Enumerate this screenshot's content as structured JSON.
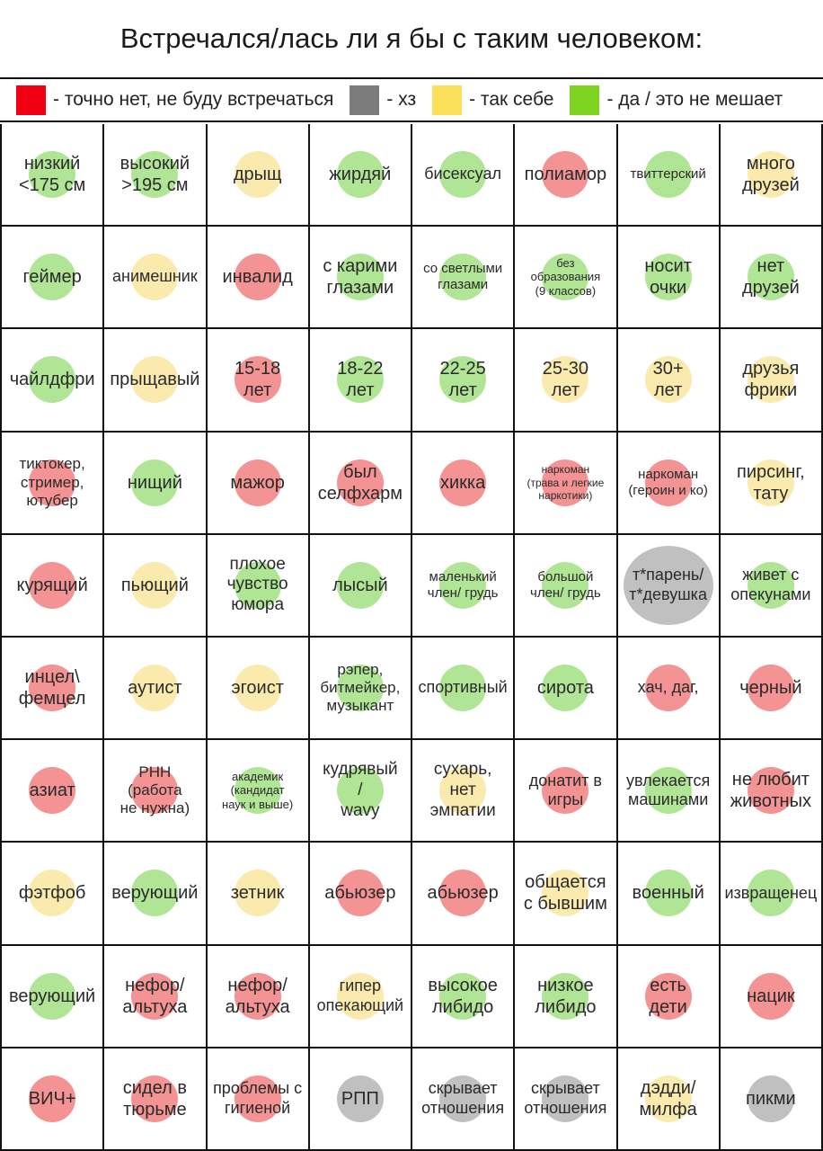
{
  "title": "Встречался/лась ли я бы с таким человеком:",
  "colors": {
    "red": "#f00012",
    "gray": "#7b7b7b",
    "yellow": "#fbe15a",
    "green": "#7ed321",
    "dot_red": "#ea3b3b",
    "dot_gray": "#8d8d8d",
    "dot_yellow": "#f7d96a",
    "dot_green": "#6fcf3e"
  },
  "legend": [
    {
      "color": "red",
      "label": "- точно нет, не буду встречаться"
    },
    {
      "color": "gray",
      "label": "- хз"
    },
    {
      "color": "yellow",
      "label": "- так себе"
    },
    {
      "color": "green",
      "label": "- да / это не мешает"
    }
  ],
  "rows": [
    [
      {
        "text": "низкий\n<175 см",
        "color": "green"
      },
      {
        "text": "высокий\n>195 см",
        "color": "green"
      },
      {
        "text": "дрыщ",
        "color": "yellow"
      },
      {
        "text": "жирдяй",
        "color": "green"
      },
      {
        "text": "бисексуал",
        "color": "green"
      },
      {
        "text": "полиамор",
        "color": "red"
      },
      {
        "text": "твиттерский",
        "color": "green"
      },
      {
        "text": "много\nдрузей",
        "color": "yellow"
      }
    ],
    [
      {
        "text": "геймер",
        "color": "green"
      },
      {
        "text": "анимешник",
        "color": "yellow"
      },
      {
        "text": "инвалид",
        "color": "red"
      },
      {
        "text": "с карими\nглазами",
        "color": "green"
      },
      {
        "text": "со светлыми\nглазами",
        "color": "green"
      },
      {
        "text": "без\nобразования\n(9 классов)",
        "color": "green"
      },
      {
        "text": "носит\nочки",
        "color": "green"
      },
      {
        "text": "нет\nдрузей",
        "color": "green"
      }
    ],
    [
      {
        "text": "чайлдфри",
        "color": "green"
      },
      {
        "text": "прыщавый",
        "color": "yellow"
      },
      {
        "text": "15-18\nлет",
        "color": "red"
      },
      {
        "text": "18-22\nлет",
        "color": "green"
      },
      {
        "text": "22-25\nлет",
        "color": "green"
      },
      {
        "text": "25-30\nлет",
        "color": "yellow"
      },
      {
        "text": "30+\nлет",
        "color": "yellow"
      },
      {
        "text": "друзья\nфрики",
        "color": "yellow"
      }
    ],
    [
      {
        "text": "тиктокер,\nстример,\nютубер",
        "color": "red"
      },
      {
        "text": "нищий",
        "color": "green"
      },
      {
        "text": "мажор",
        "color": "red"
      },
      {
        "text": "был\nселфхарм",
        "color": "red"
      },
      {
        "text": "хикка",
        "color": "red"
      },
      {
        "text": "наркоман\n(трава и легкие\nнаркотики)",
        "color": "red"
      },
      {
        "text": "наркоман\n(героин и ко)",
        "color": "red"
      },
      {
        "text": "пирсинг,\nтату",
        "color": "yellow"
      }
    ],
    [
      {
        "text": "курящий",
        "color": "red"
      },
      {
        "text": "пьющий",
        "color": "yellow"
      },
      {
        "text": "плохое\nчувство\nюмора",
        "color": "green"
      },
      {
        "text": "лысый",
        "color": "green"
      },
      {
        "text": "маленький\nчлен/ грудь",
        "color": "green"
      },
      {
        "text": "большой\nчлен/ грудь",
        "color": "green"
      },
      {
        "text": "т*парень/\nт*девушка",
        "color": "gray",
        "big": true
      },
      {
        "text": "живет с\nопекунами",
        "color": "green"
      }
    ],
    [
      {
        "text": "инцел\\\nфемцел",
        "color": "red"
      },
      {
        "text": "аутист",
        "color": "yellow"
      },
      {
        "text": "эгоист",
        "color": "yellow"
      },
      {
        "text": "рэпер,\nбитмейкер,\nмузыкант",
        "color": "green"
      },
      {
        "text": "спортивный",
        "color": "green"
      },
      {
        "text": "сирота",
        "color": "green"
      },
      {
        "text": "хач, даг,",
        "color": "red"
      },
      {
        "text": "черный",
        "color": "red"
      }
    ],
    [
      {
        "text": "азиат",
        "color": "red"
      },
      {
        "text": "РНН\n(работа\nне нужна)",
        "color": "red"
      },
      {
        "text": "академик\n(кандидат\nнаук и выше)",
        "color": "green"
      },
      {
        "text": "кудрявый\n/\nwavy",
        "color": "green"
      },
      {
        "text": "сухарь,\nнет\nэмпатии",
        "color": "yellow"
      },
      {
        "text": "донатит в\nигры",
        "color": "red"
      },
      {
        "text": "увлекается\nмашинами",
        "color": "green"
      },
      {
        "text": "не любит\nживотных",
        "color": "red"
      }
    ],
    [
      {
        "text": "фэтфоб",
        "color": "yellow"
      },
      {
        "text": "верующий",
        "color": "green"
      },
      {
        "text": "зетник",
        "color": "yellow"
      },
      {
        "text": "абьюзер",
        "color": "red"
      },
      {
        "text": "абьюзер",
        "color": "red"
      },
      {
        "text": "общается\nс бывшим",
        "color": "yellow"
      },
      {
        "text": "военный",
        "color": "green"
      },
      {
        "text": "извращенец",
        "color": "green"
      }
    ],
    [
      {
        "text": "верующий",
        "color": "green"
      },
      {
        "text": "нефор/\nальтуха",
        "color": "red"
      },
      {
        "text": "нефор/\nальтуха",
        "color": "red"
      },
      {
        "text": "гипер\nопекающий",
        "color": "yellow"
      },
      {
        "text": "высокое\nлибидо",
        "color": "green"
      },
      {
        "text": "низкое\nлибидо",
        "color": "green"
      },
      {
        "text": "есть\nдети",
        "color": "red"
      },
      {
        "text": "нацик",
        "color": "red"
      }
    ],
    [
      {
        "text": "ВИЧ+",
        "color": "red"
      },
      {
        "text": "сидел в\nтюрьме",
        "color": "red"
      },
      {
        "text": "проблемы с\nгигиеной",
        "color": "red"
      },
      {
        "text": "РПП",
        "color": "gray"
      },
      {
        "text": "скрывает\nотношения",
        "color": "gray"
      },
      {
        "text": "скрывает\nотношения",
        "color": "gray"
      },
      {
        "text": "дэдди/\nмилфа",
        "color": "yellow"
      },
      {
        "text": "пикми",
        "color": "gray"
      }
    ]
  ]
}
